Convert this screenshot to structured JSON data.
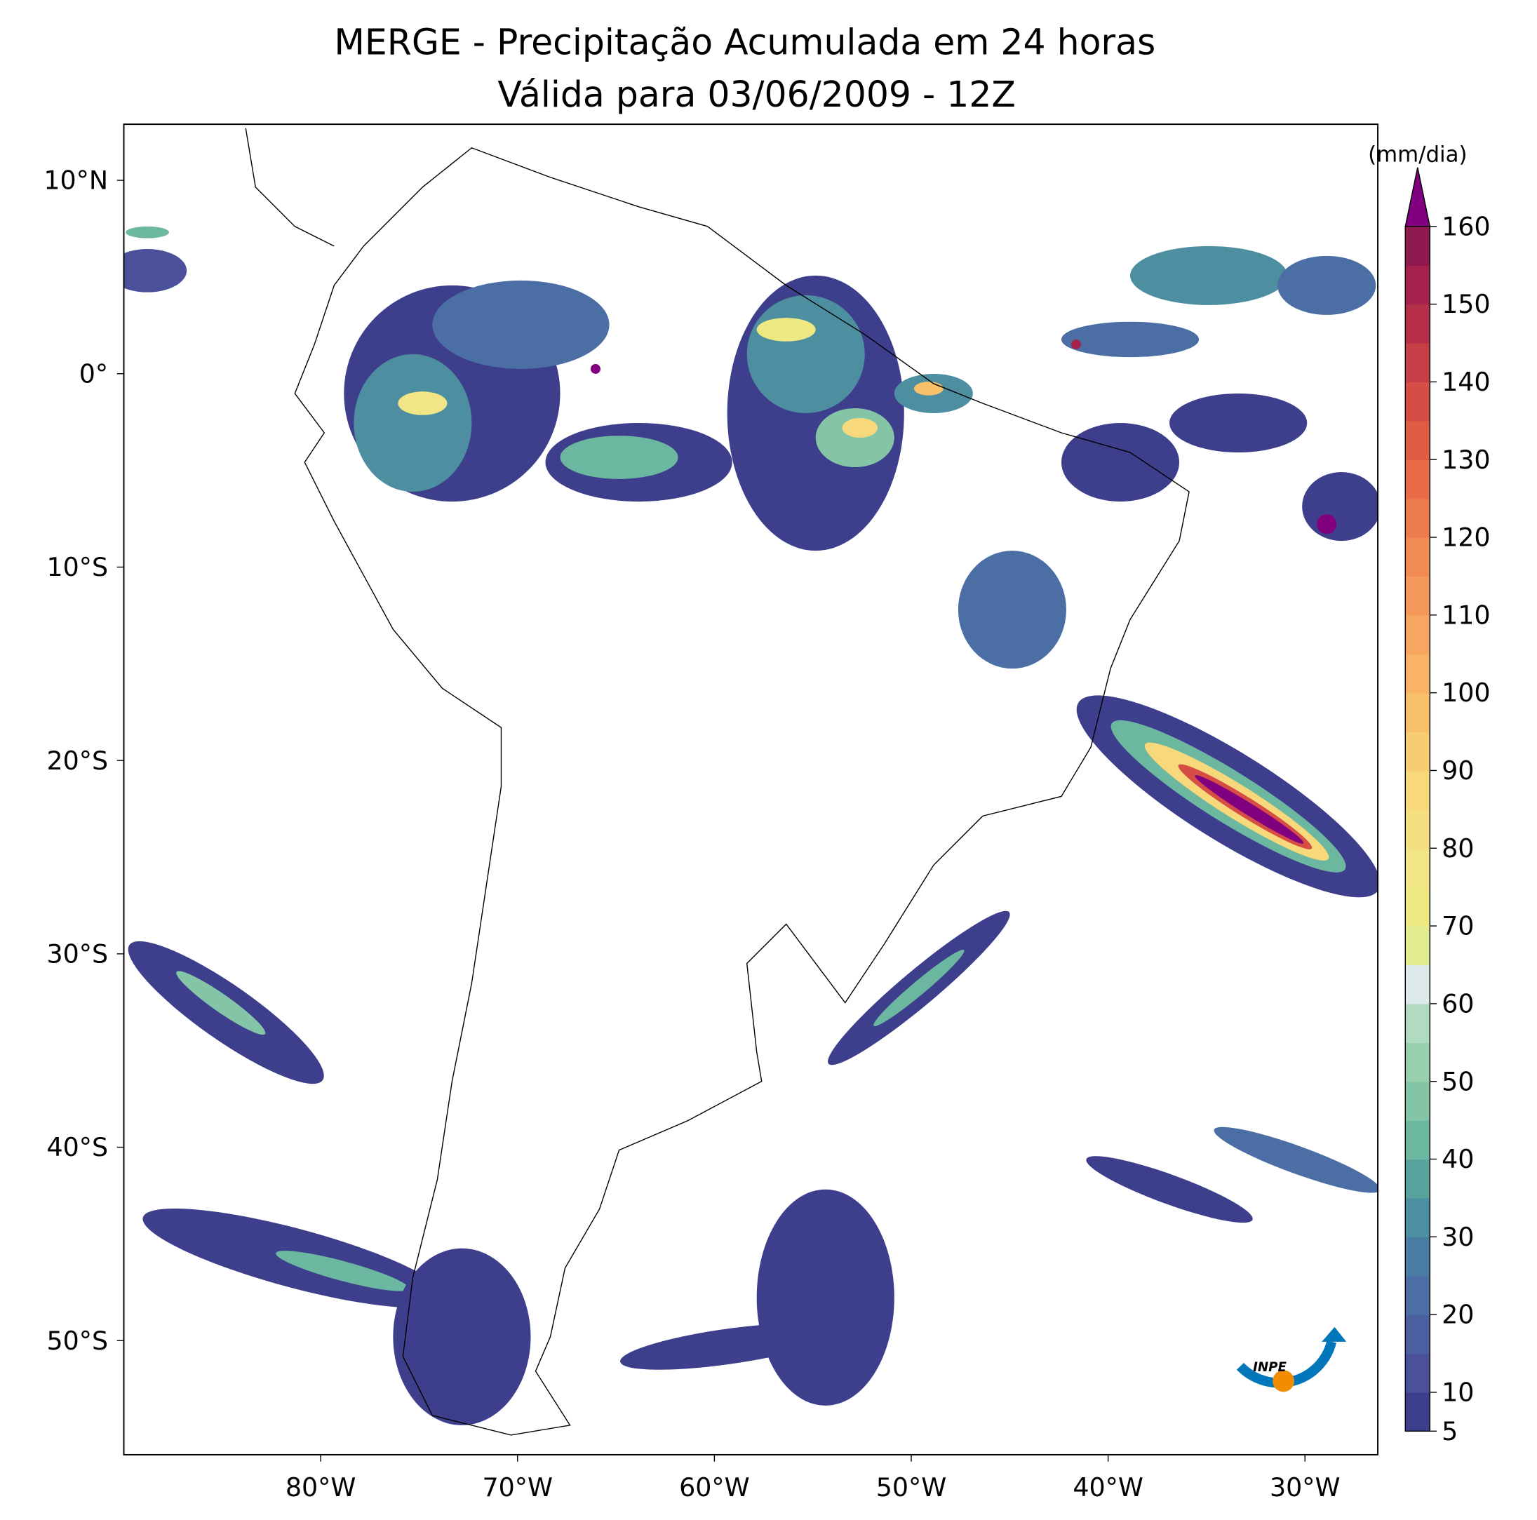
{
  "title": [
    "MERGE - Precipitação Acumulada em 24 horas",
    "Válida para 03/06/2009 - 12Z"
  ],
  "map": {
    "xlim": [
      -90,
      -26.3
    ],
    "ylim": [
      -55.9,
      12.9
    ],
    "xticks": [
      {
        "value": -80,
        "label": "80°W"
      },
      {
        "value": -70,
        "label": "70°W"
      },
      {
        "value": -60,
        "label": "60°W"
      },
      {
        "value": -50,
        "label": "50°W"
      },
      {
        "value": -40,
        "label": "40°W"
      },
      {
        "value": -30,
        "label": "30°W"
      }
    ],
    "yticks": [
      {
        "value": 10,
        "label": "10°N"
      },
      {
        "value": 0,
        "label": "0°"
      },
      {
        "value": -10,
        "label": "10°S"
      },
      {
        "value": -20,
        "label": "20°S"
      },
      {
        "value": -30,
        "label": "30°S"
      },
      {
        "value": -40,
        "label": "40°S"
      },
      {
        "value": -50,
        "label": "50°S"
      }
    ]
  },
  "colorbar": {
    "label": "(mm/dia)",
    "lim": [
      5,
      160
    ],
    "ticks": [
      5,
      10,
      20,
      30,
      40,
      50,
      60,
      70,
      80,
      90,
      100,
      110,
      120,
      130,
      140,
      150,
      160
    ],
    "colors": [
      "#3e3f8c",
      "#4a519a",
      "#4c5fa0",
      "#4b6ea4",
      "#4b7da4",
      "#4d8fa1",
      "#58a39d",
      "#6cb7a0",
      "#83c5a6",
      "#99d0ad",
      "#b1dbc0",
      "#dde9ea",
      "#e3ec90",
      "#eee883",
      "#f1e585",
      "#f5df80",
      "#f7d87a",
      "#f8cc72",
      "#f9c06a",
      "#f8b366",
      "#f6a661",
      "#f5995b",
      "#f28a53",
      "#ee7b4c",
      "#e86c47",
      "#e05c45",
      "#d54d44",
      "#c63f46",
      "#b73049",
      "#a5234c",
      "#8f1a52"
    ],
    "extend_color": "#800080"
  },
  "logo": "INPE"
}
